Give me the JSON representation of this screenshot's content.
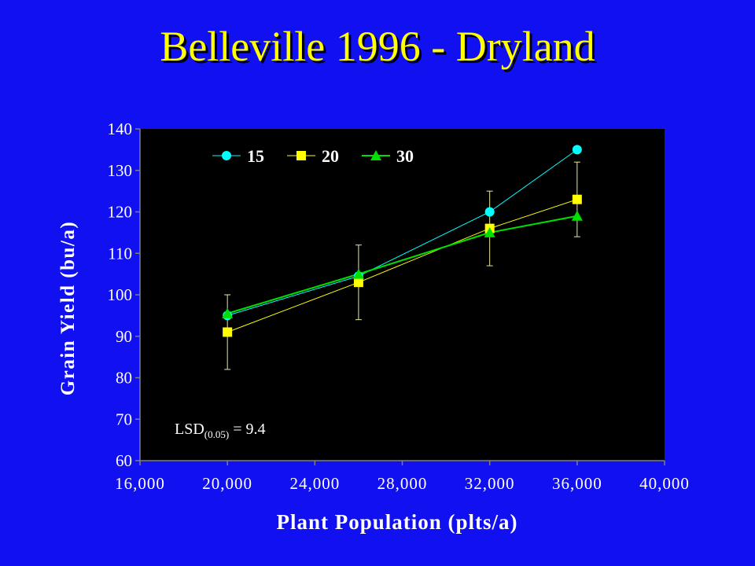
{
  "slide": {
    "title": "Belleville 1996 - Dryland",
    "background_color": "#1010f0",
    "title_color": "#ffff00"
  },
  "chart_data": {
    "type": "line",
    "title": "",
    "xlabel": "Plant Population (plts/a)",
    "ylabel": "Grain Yield (bu/a)",
    "xlim": [
      16000,
      40000
    ],
    "ylim": [
      60,
      140
    ],
    "xticks": [
      16000,
      20000,
      24000,
      28000,
      32000,
      36000,
      40000
    ],
    "xtick_labels": [
      "16,000",
      "20,000",
      "24,000",
      "28,000",
      "32,000",
      "36,000",
      "40,000"
    ],
    "yticks": [
      60,
      70,
      80,
      90,
      100,
      110,
      120,
      130,
      140
    ],
    "ytick_labels": [
      "60",
      "70",
      "80",
      "90",
      "100",
      "110",
      "120",
      "130",
      "140"
    ],
    "plot_background": "#000000",
    "grid": false,
    "legend_position": "top-left",
    "series": [
      {
        "name": "15",
        "color": "#00ffff",
        "marker": "circle",
        "x": [
          20000,
          26000,
          32000,
          36000
        ],
        "y": [
          95,
          104.5,
          120,
          135
        ]
      },
      {
        "name": "20",
        "color": "#ffff00",
        "marker": "square",
        "x": [
          20000,
          26000,
          32000,
          36000
        ],
        "y": [
          91,
          103,
          116,
          123
        ]
      },
      {
        "name": "30",
        "color": "#00e000",
        "marker": "triangle",
        "x": [
          20000,
          26000,
          32000,
          36000
        ],
        "y": [
          95.5,
          105,
          115,
          119
        ]
      }
    ],
    "error_bars": [
      {
        "x": 20000,
        "low": 82,
        "high": 100
      },
      {
        "x": 26000,
        "low": 94,
        "high": 112
      },
      {
        "x": 32000,
        "low": 107,
        "high": 125
      },
      {
        "x": 36000,
        "low": 114,
        "high": 132
      }
    ],
    "annotation": {
      "prefix": "LSD",
      "subscript": "(0.05)",
      "suffix": " = 9.4"
    }
  }
}
